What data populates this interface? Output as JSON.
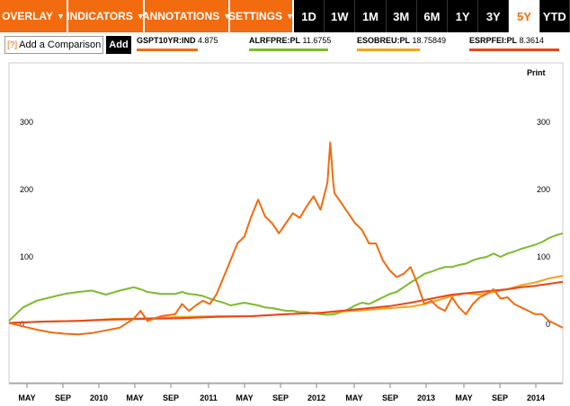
{
  "toolbar": {
    "menus": [
      {
        "label": "OVERLAY"
      },
      {
        "label": "INDICATORS"
      },
      {
        "label": "ANNOTATIONS"
      },
      {
        "label": "SETTINGS"
      }
    ],
    "ranges": [
      "1D",
      "1W",
      "1M",
      "3M",
      "6M",
      "1Y",
      "3Y",
      "5Y",
      "YTD"
    ],
    "active_range": "5Y"
  },
  "compare": {
    "help": "[?]",
    "label": "Add a Comparison",
    "add_label": "Add"
  },
  "legend": [
    {
      "ticker": "GSPT10YR:IND",
      "value": "4.875",
      "color": "#f26b0f"
    },
    {
      "ticker": "ALRFPRE:PL",
      "value": "11.6755",
      "color": "#7cbb2e"
    },
    {
      "ticker": "ESOBREU:PL",
      "value": "18.75849",
      "color": "#f7a21b"
    },
    {
      "ticker": "ESRPFEI:PL",
      "value": "8.3614",
      "color": "#e8461b"
    }
  ],
  "print_label": "Print",
  "chart_data": {
    "type": "line",
    "y_ticks": [
      "300",
      "200",
      "100",
      "0"
    ],
    "ylim": [
      -40,
      330
    ],
    "x_tick_labels": [
      "MAY",
      "SEP",
      "2010",
      "MAY",
      "SEP",
      "2011",
      "MAY",
      "SEP",
      "2012",
      "MAY",
      "SEP",
      "2013",
      "MAY",
      "SEP",
      "2014"
    ],
    "grid": false,
    "series": [
      {
        "name": "GSPT10YR:IND",
        "color": "#f26b0f",
        "points": [
          [
            0,
            2
          ],
          [
            2,
            -3
          ],
          [
            4,
            -8
          ],
          [
            6,
            -12
          ],
          [
            8,
            -14
          ],
          [
            10,
            -15
          ],
          [
            12,
            -13
          ],
          [
            14,
            -9
          ],
          [
            16,
            -5
          ],
          [
            18,
            8
          ],
          [
            19,
            20
          ],
          [
            20,
            5
          ],
          [
            22,
            12
          ],
          [
            24,
            15
          ],
          [
            25,
            30
          ],
          [
            26,
            20
          ],
          [
            27,
            28
          ],
          [
            28,
            35
          ],
          [
            29,
            30
          ],
          [
            30,
            45
          ],
          [
            31,
            70
          ],
          [
            32,
            95
          ],
          [
            33,
            120
          ],
          [
            34,
            130
          ],
          [
            35,
            160
          ],
          [
            36,
            185
          ],
          [
            37,
            160
          ],
          [
            38,
            150
          ],
          [
            39,
            135
          ],
          [
            40,
            150
          ],
          [
            41,
            165
          ],
          [
            42,
            158
          ],
          [
            43,
            175
          ],
          [
            44,
            190
          ],
          [
            45,
            170
          ],
          [
            46,
            210
          ],
          [
            46.4,
            270
          ],
          [
            46.8,
            215
          ],
          [
            47,
            195
          ],
          [
            48,
            180
          ],
          [
            49,
            165
          ],
          [
            50,
            150
          ],
          [
            51,
            140
          ],
          [
            52,
            120
          ],
          [
            53,
            120
          ],
          [
            54,
            95
          ],
          [
            55,
            80
          ],
          [
            56,
            70
          ],
          [
            57,
            75
          ],
          [
            58,
            85
          ],
          [
            59,
            60
          ],
          [
            60,
            30
          ],
          [
            61,
            35
          ],
          [
            62,
            25
          ],
          [
            63,
            20
          ],
          [
            64,
            40
          ],
          [
            65,
            25
          ],
          [
            66,
            15
          ],
          [
            67,
            30
          ],
          [
            68,
            40
          ],
          [
            69,
            45
          ],
          [
            70,
            52
          ],
          [
            71,
            38
          ],
          [
            72,
            40
          ],
          [
            73,
            30
          ],
          [
            74,
            25
          ],
          [
            75,
            20
          ],
          [
            76,
            15
          ],
          [
            77,
            15
          ],
          [
            78,
            5
          ],
          [
            79,
            0
          ],
          [
            80,
            -5
          ]
        ]
      },
      {
        "name": "ALRFPRE:PL",
        "color": "#7cbb2e",
        "points": [
          [
            0,
            5
          ],
          [
            2,
            25
          ],
          [
            4,
            35
          ],
          [
            6,
            40
          ],
          [
            8,
            45
          ],
          [
            10,
            48
          ],
          [
            12,
            50
          ],
          [
            14,
            44
          ],
          [
            16,
            50
          ],
          [
            18,
            55
          ],
          [
            19,
            52
          ],
          [
            20,
            48
          ],
          [
            22,
            45
          ],
          [
            24,
            45
          ],
          [
            25,
            48
          ],
          [
            26,
            45
          ],
          [
            27,
            44
          ],
          [
            28,
            42
          ],
          [
            29,
            38
          ],
          [
            30,
            35
          ],
          [
            31,
            32
          ],
          [
            32,
            28
          ],
          [
            33,
            30
          ],
          [
            34,
            32
          ],
          [
            35,
            30
          ],
          [
            36,
            28
          ],
          [
            37,
            25
          ],
          [
            38,
            24
          ],
          [
            39,
            22
          ],
          [
            40,
            20
          ],
          [
            41,
            20
          ],
          [
            42,
            18
          ],
          [
            43,
            18
          ],
          [
            44,
            16
          ],
          [
            45,
            15
          ],
          [
            46,
            14
          ],
          [
            47,
            15
          ],
          [
            48,
            18
          ],
          [
            49,
            22
          ],
          [
            50,
            28
          ],
          [
            51,
            32
          ],
          [
            52,
            30
          ],
          [
            53,
            35
          ],
          [
            54,
            40
          ],
          [
            55,
            45
          ],
          [
            56,
            48
          ],
          [
            57,
            55
          ],
          [
            58,
            62
          ],
          [
            59,
            68
          ],
          [
            60,
            75
          ],
          [
            61,
            78
          ],
          [
            62,
            82
          ],
          [
            63,
            85
          ],
          [
            64,
            85
          ],
          [
            65,
            88
          ],
          [
            66,
            90
          ],
          [
            67,
            95
          ],
          [
            68,
            98
          ],
          [
            69,
            100
          ],
          [
            70,
            105
          ],
          [
            71,
            100
          ],
          [
            72,
            105
          ],
          [
            73,
            108
          ],
          [
            74,
            112
          ],
          [
            75,
            115
          ],
          [
            76,
            118
          ],
          [
            77,
            122
          ],
          [
            78,
            128
          ],
          [
            79,
            132
          ],
          [
            80,
            135
          ]
        ]
      },
      {
        "name": "ESOBREU:PL",
        "color": "#f7a21b",
        "points": [
          [
            0,
            2
          ],
          [
            5,
            4
          ],
          [
            10,
            5
          ],
          [
            15,
            8
          ],
          [
            20,
            9
          ],
          [
            25,
            11
          ],
          [
            30,
            12
          ],
          [
            35,
            12
          ],
          [
            40,
            15
          ],
          [
            45,
            17
          ],
          [
            50,
            20
          ],
          [
            55,
            24
          ],
          [
            58,
            26
          ],
          [
            60,
            30
          ],
          [
            62,
            36
          ],
          [
            64,
            42
          ],
          [
            66,
            46
          ],
          [
            68,
            44
          ],
          [
            70,
            48
          ],
          [
            72,
            52
          ],
          [
            74,
            58
          ],
          [
            76,
            62
          ],
          [
            78,
            68
          ],
          [
            80,
            72
          ]
        ]
      },
      {
        "name": "ESRPFEI:PL",
        "color": "#e8461b",
        "points": [
          [
            0,
            2
          ],
          [
            5,
            4
          ],
          [
            10,
            5
          ],
          [
            15,
            7
          ],
          [
            20,
            8
          ],
          [
            25,
            9
          ],
          [
            30,
            11
          ],
          [
            35,
            12
          ],
          [
            40,
            15
          ],
          [
            45,
            17
          ],
          [
            50,
            22
          ],
          [
            55,
            27
          ],
          [
            58,
            32
          ],
          [
            60,
            36
          ],
          [
            62,
            40
          ],
          [
            64,
            44
          ],
          [
            66,
            46
          ],
          [
            68,
            48
          ],
          [
            70,
            50
          ],
          [
            72,
            52
          ],
          [
            74,
            55
          ],
          [
            76,
            57
          ],
          [
            78,
            60
          ],
          [
            80,
            63
          ]
        ]
      }
    ]
  }
}
